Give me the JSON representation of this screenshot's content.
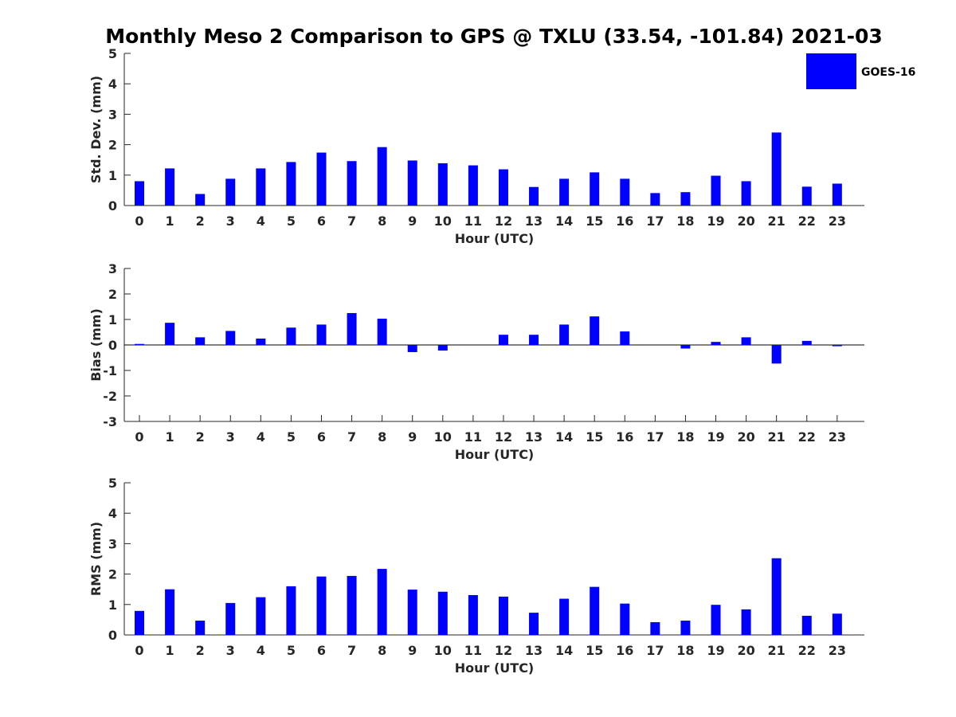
{
  "title": "Monthly Meso 2 Comparison to GPS @ TXLU (33.54, -101.84) 2021-03",
  "colors": {
    "bar": "#0000ff",
    "axis": "#262626",
    "zero_line": "#000000"
  },
  "legend": {
    "label": "GOES-16",
    "placement": "top-right"
  },
  "chart_data": [
    {
      "type": "bar",
      "panel": "std-dev",
      "xlabel": "Hour (UTC)",
      "ylabel": "Std. Dev. (mm)",
      "ylim": [
        0,
        5
      ],
      "yticks": [
        0,
        1,
        2,
        3,
        4,
        5
      ],
      "categories": [
        "0",
        "1",
        "2",
        "3",
        "4",
        "5",
        "6",
        "7",
        "8",
        "9",
        "10",
        "11",
        "12",
        "13",
        "14",
        "15",
        "16",
        "17",
        "18",
        "19",
        "20",
        "21",
        "22",
        "23"
      ],
      "series": [
        {
          "name": "GOES-16",
          "values": [
            0.8,
            1.22,
            0.38,
            0.88,
            1.22,
            1.43,
            1.74,
            1.46,
            1.92,
            1.48,
            1.39,
            1.32,
            1.19,
            0.61,
            0.88,
            1.09,
            0.88,
            0.41,
            0.44,
            0.98,
            0.8,
            2.4,
            0.62,
            0.72
          ]
        }
      ]
    },
    {
      "type": "bar",
      "panel": "bias",
      "xlabel": "Hour (UTC)",
      "ylabel": "Bias (mm)",
      "ylim": [
        -3,
        3
      ],
      "yticks": [
        -3,
        -2,
        -1,
        0,
        1,
        2,
        3
      ],
      "categories": [
        "0",
        "1",
        "2",
        "3",
        "4",
        "5",
        "6",
        "7",
        "8",
        "9",
        "10",
        "11",
        "12",
        "13",
        "14",
        "15",
        "16",
        "17",
        "18",
        "19",
        "20",
        "21",
        "22",
        "23"
      ],
      "series": [
        {
          "name": "GOES-16",
          "values": [
            0.04,
            0.87,
            0.3,
            0.55,
            0.25,
            0.68,
            0.8,
            1.25,
            1.03,
            -0.28,
            -0.22,
            0.0,
            0.4,
            0.4,
            0.8,
            1.12,
            0.53,
            0.0,
            -0.14,
            0.12,
            0.3,
            -0.73,
            0.16,
            -0.05
          ]
        }
      ]
    },
    {
      "type": "bar",
      "panel": "rms",
      "xlabel": "Hour (UTC)",
      "ylabel": "RMS (mm)",
      "ylim": [
        0,
        5
      ],
      "yticks": [
        0,
        1,
        2,
        3,
        4,
        5
      ],
      "categories": [
        "0",
        "1",
        "2",
        "3",
        "4",
        "5",
        "6",
        "7",
        "8",
        "9",
        "10",
        "11",
        "12",
        "13",
        "14",
        "15",
        "16",
        "17",
        "18",
        "19",
        "20",
        "21",
        "22",
        "23"
      ],
      "series": [
        {
          "name": "GOES-16",
          "values": [
            0.79,
            1.5,
            0.47,
            1.05,
            1.24,
            1.6,
            1.92,
            1.94,
            2.17,
            1.49,
            1.42,
            1.31,
            1.26,
            0.73,
            1.19,
            1.58,
            1.03,
            0.42,
            0.47,
            0.99,
            0.84,
            2.52,
            0.63,
            0.7
          ]
        }
      ]
    }
  ]
}
